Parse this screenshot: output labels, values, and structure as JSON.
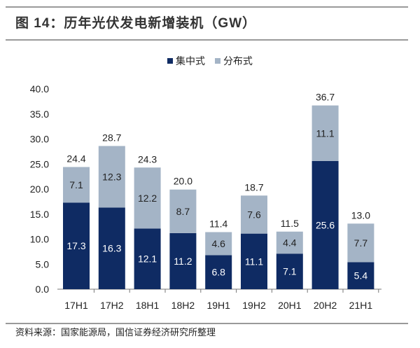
{
  "title": "图 14：历年光伏发电新增装机（GW）",
  "source": "资料来源：国家能源局，国信证券经济研究所整理",
  "colors": {
    "centralized": "#0f2b63",
    "distributed": "#a4b4c6"
  },
  "chart_data": {
    "type": "bar",
    "stacked": true,
    "categories": [
      "17H1",
      "17H2",
      "18H1",
      "18H2",
      "19H1",
      "19H2",
      "20H1",
      "20H2",
      "21H1"
    ],
    "series": [
      {
        "name": "集中式",
        "values": [
          17.3,
          16.3,
          12.1,
          11.2,
          6.8,
          11.1,
          7.1,
          25.6,
          5.4
        ]
      },
      {
        "name": "分布式",
        "values": [
          7.1,
          12.3,
          12.2,
          8.7,
          4.6,
          7.6,
          4.4,
          11.1,
          7.7
        ]
      }
    ],
    "totals": [
      "24.4",
      "28.7",
      "24.3",
      "20.0",
      "11.4",
      "18.7",
      "11.5",
      "36.7",
      "13.0"
    ],
    "yticks": [
      "0.0",
      "5.0",
      "10.0",
      "15.0",
      "20.0",
      "25.0",
      "30.0",
      "35.0",
      "40.0"
    ],
    "ylim": [
      0,
      40
    ],
    "grid": false,
    "legend_position": "top-center"
  }
}
